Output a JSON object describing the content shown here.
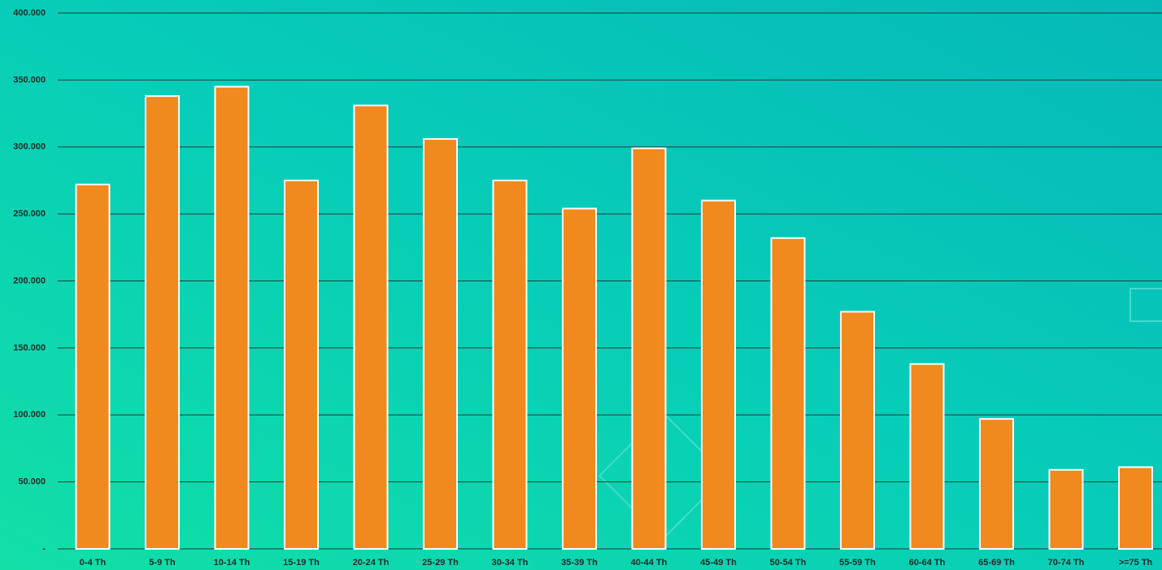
{
  "chart_data": {
    "type": "bar",
    "categories": [
      "0-4 Th",
      "5-9 Th",
      "10-14 Th",
      "15-19 Th",
      "20-24 Th",
      "25-29 Th",
      "30-34 Th",
      "35-39 Th",
      "40-44 Th",
      "45-49 Th",
      "50-54 Th",
      "55-59 Th",
      "60-64 Th",
      "65-69 Th",
      "70-74 Th",
      ">=75 Th"
    ],
    "values": [
      272000,
      338000,
      345000,
      275000,
      331000,
      306000,
      275000,
      254000,
      299000,
      260000,
      232000,
      177000,
      138000,
      97000,
      59000,
      61000
    ],
    "color": "#f0891e",
    "ylim": [
      0,
      400000
    ],
    "yticks": [
      {
        "value": 0,
        "label": "-"
      },
      {
        "value": 50000,
        "label": "50.000"
      },
      {
        "value": 100000,
        "label": "100.000"
      },
      {
        "value": 150000,
        "label": "150.000"
      },
      {
        "value": 200000,
        "label": "200.000"
      },
      {
        "value": 250000,
        "label": "250.000"
      },
      {
        "value": 300000,
        "label": "300.000"
      },
      {
        "value": 350000,
        "label": "350.000"
      },
      {
        "value": 400000,
        "label": "400.000"
      }
    ],
    "grid": true
  }
}
